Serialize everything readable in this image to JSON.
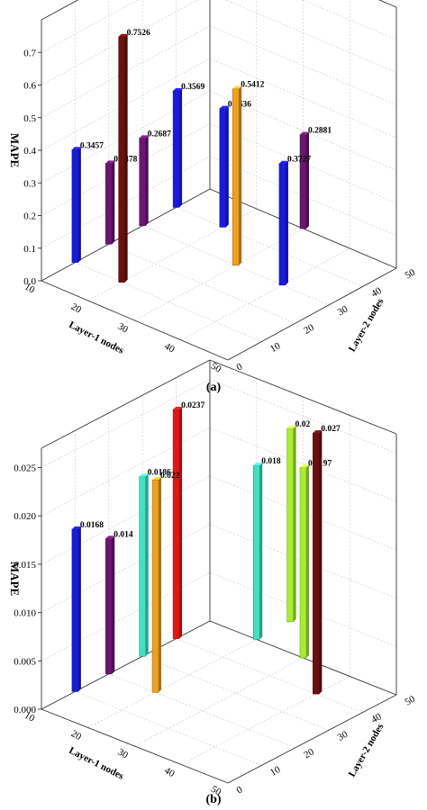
{
  "chart_data": [
    {
      "type": "bar",
      "panel_label": "(a)",
      "ylabel": "MAPE",
      "xlabel": "Layer-1 nodes",
      "zlabel": "Layer-2 nodes",
      "ylim": [
        0,
        0.8
      ],
      "y_ticks": [
        "0.0",
        "0.1",
        "0.2",
        "0.3",
        "0.4",
        "0.5",
        "0.6",
        "0.7"
      ],
      "x_ticks": [
        "10",
        "20",
        "30",
        "40",
        "50"
      ],
      "z_ticks": [
        "0",
        "10",
        "20",
        "30",
        "40",
        "50"
      ],
      "grid": true,
      "bars": [
        {
          "layer1": 10,
          "layer2": 10,
          "value": 0.3457,
          "label": "0.3457",
          "color": "#1a1adf"
        },
        {
          "layer1": 10,
          "layer2": 20,
          "value": 0.2478,
          "label": "0.2478",
          "color": "#6b1670"
        },
        {
          "layer1": 20,
          "layer2": 10,
          "value": 0.7526,
          "label": "0.7526",
          "color": "#6b0f0f"
        },
        {
          "layer1": 10,
          "layer2": 30,
          "value": 0.2687,
          "label": "0.2687",
          "color": "#6b1670"
        },
        {
          "layer1": 10,
          "layer2": 40,
          "value": 0.3569,
          "label": "0.3569",
          "color": "#1a1adf"
        },
        {
          "layer1": 30,
          "layer2": 30,
          "value": 0.5412,
          "label": "0.5412",
          "color": "#f0a020"
        },
        {
          "layer1": 20,
          "layer2": 40,
          "value": 0.3636,
          "label": "0.3636",
          "color": "#1a1adf"
        },
        {
          "layer1": 40,
          "layer2": 30,
          "value": 0.3727,
          "label": "0.3727",
          "color": "#1a1adf"
        },
        {
          "layer1": 30,
          "layer2": 50,
          "value": 0.2881,
          "label": "0.2881",
          "color": "#6b1670"
        }
      ]
    },
    {
      "type": "bar",
      "panel_label": "(b)",
      "ylabel": "MAPE",
      "xlabel": "Layer-1 nodes",
      "zlabel": "Layer-2 nodes",
      "ylim": [
        0,
        0.027
      ],
      "y_ticks": [
        "0.000",
        "0.005",
        "0.010",
        "0.015",
        "0.020",
        "0.025"
      ],
      "x_ticks": [
        "10",
        "20",
        "30",
        "40",
        "50"
      ],
      "z_ticks": [
        "0",
        "10",
        "20",
        "30",
        "40",
        "50"
      ],
      "grid": true,
      "bars": [
        {
          "layer1": 10,
          "layer2": 10,
          "value": 0.0168,
          "label": "0.0168",
          "color": "#1a1adf"
        },
        {
          "layer1": 10,
          "layer2": 20,
          "value": 0.014,
          "label": "0.014",
          "color": "#6b1670"
        },
        {
          "layer1": 20,
          "layer2": 20,
          "value": 0.022,
          "label": "0.022",
          "color": "#f0a020"
        },
        {
          "layer1": 10,
          "layer2": 30,
          "value": 0.0186,
          "label": "0.0186",
          "color": "#40e0c0"
        },
        {
          "layer1": 10,
          "layer2": 40,
          "value": 0.0237,
          "label": "0.0237",
          "color": "#e01818"
        },
        {
          "layer1": 20,
          "layer2": 50,
          "value": 0.018,
          "label": "0.018",
          "color": "#40e0c0"
        },
        {
          "layer1": 40,
          "layer2": 40,
          "value": 0.027,
          "label": "0.027",
          "color": "#6b0f0f"
        },
        {
          "layer1": 30,
          "layer2": 50,
          "value": 0.0197,
          "label": "0.0197",
          "color": "#a8ee30"
        },
        {
          "layer1": 20,
          "layer2": 60,
          "value": 0.02,
          "label": "0.02",
          "color": "#a8ee30"
        }
      ]
    }
  ]
}
